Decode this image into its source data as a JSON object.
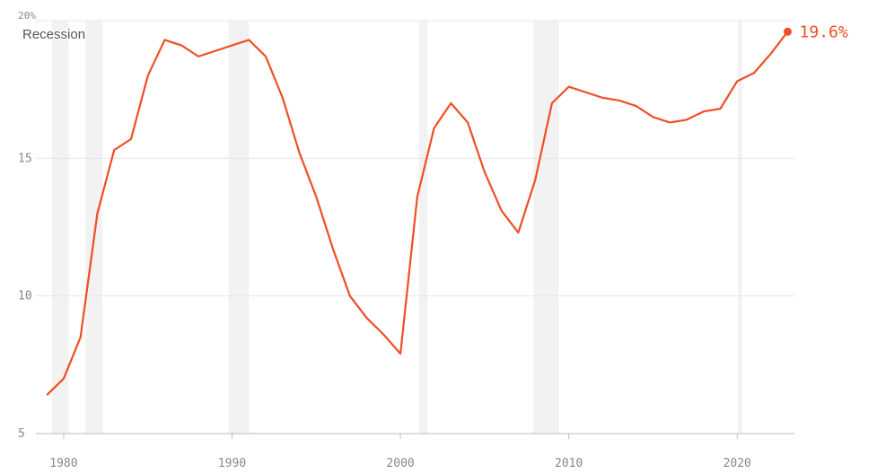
{
  "chart_data": {
    "type": "line",
    "x": [
      1979,
      1980,
      1981,
      1982,
      1983,
      1984,
      1985,
      1986,
      1987,
      1988,
      1989,
      1990,
      1991,
      1992,
      1993,
      1994,
      1995,
      1996,
      1997,
      1998,
      1999,
      2000,
      2001,
      2002,
      2003,
      2004,
      2005,
      2006,
      2007,
      2008,
      2009,
      2010,
      2011,
      2012,
      2013,
      2014,
      2015,
      2016,
      2017,
      2018,
      2019,
      2020,
      2021,
      2022,
      2023
    ],
    "series": [
      {
        "color": "#f04e23",
        "values": [
          6.4,
          7.0,
          8.5,
          13.0,
          15.3,
          15.7,
          18.0,
          19.3,
          19.1,
          18.7,
          18.9,
          19.1,
          19.3,
          18.7,
          17.2,
          15.2,
          13.6,
          11.7,
          10.0,
          9.2,
          8.6,
          7.9,
          13.6,
          16.1,
          17.0,
          16.3,
          14.5,
          13.1,
          12.3,
          14.2,
          17.0,
          17.6,
          17.4,
          17.2,
          17.1,
          16.9,
          16.5,
          16.3,
          16.4,
          16.7,
          16.8,
          17.8,
          18.1,
          18.8,
          19.6
        ],
        "value_labels": [
          null,
          null,
          null,
          null,
          null,
          null,
          null,
          null,
          null,
          null,
          null,
          null,
          null,
          null,
          null,
          null,
          null,
          null,
          null,
          null,
          null,
          null,
          null,
          null,
          null,
          null,
          null,
          null,
          null,
          null,
          null,
          null,
          null,
          null,
          null,
          null,
          null,
          null,
          null,
          null,
          null,
          null,
          null,
          null,
          "19.6%"
        ]
      }
    ],
    "recessions": [
      [
        1979.3,
        1980.3
      ],
      [
        1981.3,
        1982.3
      ],
      [
        1989.8,
        1991.0
      ],
      [
        2001.1,
        2001.6
      ],
      [
        2007.9,
        2009.4
      ],
      [
        2020.05,
        2020.3
      ]
    ],
    "recession_color": "#f2f2f2",
    "annotation": "Recession",
    "xlim": [
      1978.35,
      2023.4
    ],
    "xticks": [
      1980,
      1990,
      2000,
      2010,
      2020
    ],
    "ylim": [
      5,
      20
    ],
    "yticks": [
      5,
      10,
      15,
      {
        "value": 20,
        "label": "20%"
      }
    ],
    "grid": true
  }
}
